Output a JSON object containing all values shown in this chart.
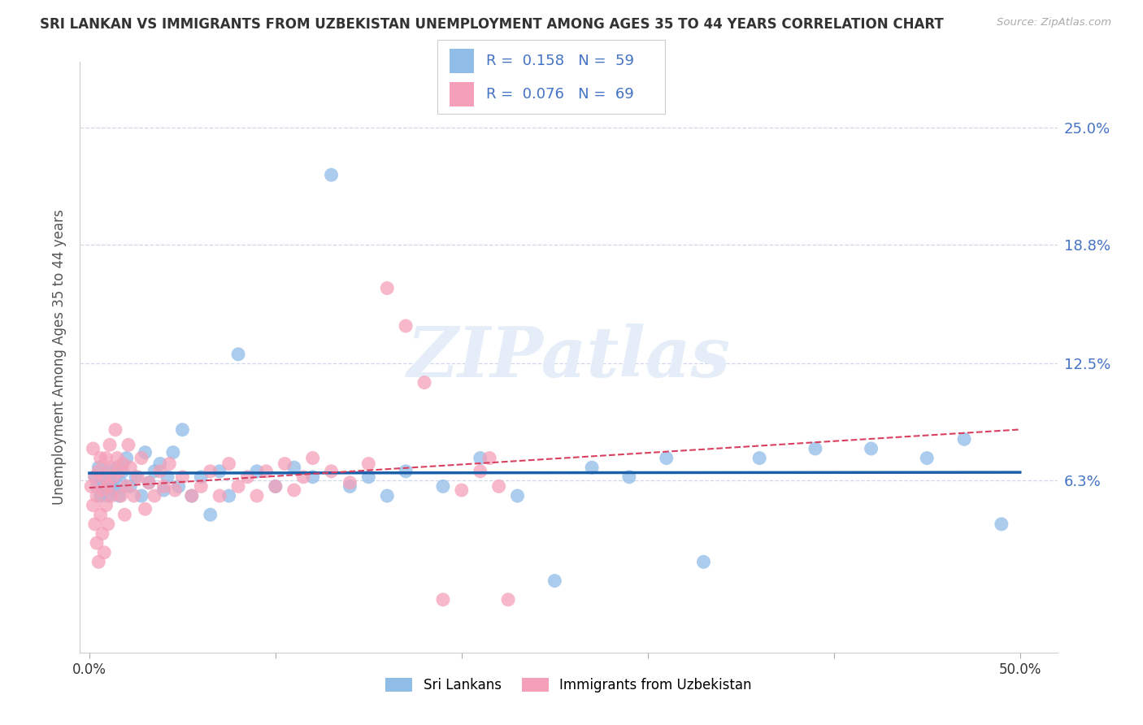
{
  "title": "SRI LANKAN VS IMMIGRANTS FROM UZBEKISTAN UNEMPLOYMENT AMONG AGES 35 TO 44 YEARS CORRELATION CHART",
  "source": "Source: ZipAtlas.com",
  "ylabel": "Unemployment Among Ages 35 to 44 years",
  "ytick_labels": [
    "25.0%",
    "18.8%",
    "12.5%",
    "6.3%"
  ],
  "ytick_values": [
    0.25,
    0.188,
    0.125,
    0.063
  ],
  "xtick_labels": [
    "0.0%",
    "50.0%"
  ],
  "xtick_values": [
    0.0,
    0.5
  ],
  "xlim": [
    -0.005,
    0.52
  ],
  "ylim": [
    -0.028,
    0.285
  ],
  "legend_sri": "Sri Lankans",
  "legend_uzb": "Immigrants from Uzbekistan",
  "R_sri": 0.158,
  "N_sri": 59,
  "R_uzb": 0.076,
  "N_uzb": 69,
  "color_sri": "#90bce8",
  "color_uzb": "#f5a0b8",
  "trendline_sri_color": "#1a5fa8",
  "trendline_uzb_color": "#d94060",
  "trendline_uzb_dashed": true,
  "watermark": "ZIPatlas",
  "watermark_color": "#e5eef8",
  "background_color": "#ffffff",
  "grid_color": "#d0d8e8",
  "title_color": "#333333",
  "source_color": "#aaaaaa",
  "axis_label_color": "#555555",
  "right_tick_color": "#4472c4",
  "legend_border_color": "#cccccc",
  "sri_x": [
    0.003,
    0.004,
    0.005,
    0.006,
    0.007,
    0.008,
    0.009,
    0.01,
    0.01,
    0.011,
    0.012,
    0.013,
    0.014,
    0.015,
    0.016,
    0.017,
    0.018,
    0.02,
    0.022,
    0.025,
    0.028,
    0.03,
    0.032,
    0.035,
    0.038,
    0.04,
    0.042,
    0.045,
    0.048,
    0.05,
    0.055,
    0.06,
    0.065,
    0.07,
    0.075,
    0.08,
    0.09,
    0.1,
    0.11,
    0.12,
    0.13,
    0.14,
    0.15,
    0.16,
    0.17,
    0.19,
    0.21,
    0.23,
    0.25,
    0.27,
    0.29,
    0.31,
    0.33,
    0.36,
    0.39,
    0.42,
    0.45,
    0.47,
    0.49
  ],
  "sri_y": [
    0.065,
    0.06,
    0.07,
    0.055,
    0.06,
    0.058,
    0.065,
    0.055,
    0.068,
    0.06,
    0.062,
    0.058,
    0.065,
    0.07,
    0.055,
    0.062,
    0.068,
    0.075,
    0.06,
    0.065,
    0.055,
    0.078,
    0.062,
    0.068,
    0.072,
    0.058,
    0.065,
    0.078,
    0.06,
    0.09,
    0.055,
    0.065,
    0.045,
    0.068,
    0.055,
    0.13,
    0.068,
    0.06,
    0.07,
    0.065,
    0.225,
    0.06,
    0.065,
    0.055,
    0.068,
    0.06,
    0.075,
    0.055,
    0.01,
    0.07,
    0.065,
    0.075,
    0.02,
    0.075,
    0.08,
    0.08,
    0.075,
    0.085,
    0.04
  ],
  "uzb_x": [
    0.001,
    0.002,
    0.002,
    0.003,
    0.003,
    0.004,
    0.004,
    0.005,
    0.005,
    0.006,
    0.006,
    0.007,
    0.007,
    0.008,
    0.008,
    0.009,
    0.009,
    0.01,
    0.01,
    0.011,
    0.011,
    0.012,
    0.013,
    0.014,
    0.015,
    0.016,
    0.017,
    0.018,
    0.019,
    0.02,
    0.021,
    0.022,
    0.024,
    0.026,
    0.028,
    0.03,
    0.032,
    0.035,
    0.038,
    0.04,
    0.043,
    0.046,
    0.05,
    0.055,
    0.06,
    0.065,
    0.07,
    0.075,
    0.08,
    0.085,
    0.09,
    0.095,
    0.1,
    0.105,
    0.11,
    0.115,
    0.12,
    0.13,
    0.14,
    0.15,
    0.16,
    0.17,
    0.18,
    0.19,
    0.2,
    0.21,
    0.215,
    0.22,
    0.225
  ],
  "uzb_y": [
    0.06,
    0.05,
    0.08,
    0.04,
    0.065,
    0.03,
    0.055,
    0.02,
    0.068,
    0.045,
    0.075,
    0.035,
    0.058,
    0.025,
    0.065,
    0.05,
    0.075,
    0.06,
    0.04,
    0.07,
    0.082,
    0.055,
    0.065,
    0.09,
    0.075,
    0.068,
    0.055,
    0.072,
    0.045,
    0.06,
    0.082,
    0.07,
    0.055,
    0.065,
    0.075,
    0.048,
    0.062,
    0.055,
    0.068,
    0.06,
    0.072,
    0.058,
    0.065,
    0.055,
    0.06,
    0.068,
    0.055,
    0.072,
    0.06,
    0.065,
    0.055,
    0.068,
    0.06,
    0.072,
    0.058,
    0.065,
    0.075,
    0.068,
    0.062,
    0.072,
    0.165,
    0.145,
    0.115,
    0.0,
    0.058,
    0.068,
    0.075,
    0.06,
    0.0
  ]
}
